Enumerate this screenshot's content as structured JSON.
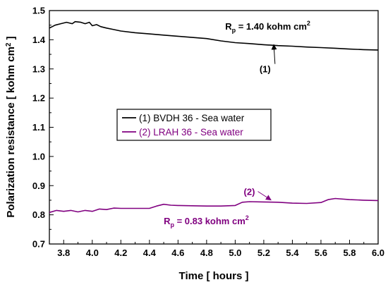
{
  "chart_data": {
    "type": "line",
    "xlabel": "Time [ hours ]",
    "ylabel": "Polarization resistance [ kohm cm",
    "ylabel_sup": "2",
    "ylabel_end": " ]",
    "xlim": [
      3.7,
      6.0
    ],
    "ylim": [
      0.7,
      1.5
    ],
    "xticks": [
      "3.8",
      "4.0",
      "4.2",
      "4.4",
      "4.6",
      "4.8",
      "5.0",
      "5.2",
      "5.4",
      "5.6",
      "5.8",
      "6.0"
    ],
    "yticks": [
      "0.7",
      "0.8",
      "0.9",
      "1.0",
      "1.1",
      "1.2",
      "1.3",
      "1.4",
      "1.5"
    ],
    "grid": false,
    "legend_position": "center-left",
    "series": [
      {
        "name": "(1) BVDH 36 - Sea water",
        "color": "#000000",
        "points": [
          [
            3.7,
            1.44
          ],
          [
            3.74,
            1.45
          ],
          [
            3.78,
            1.455
          ],
          [
            3.82,
            1.46
          ],
          [
            3.86,
            1.455
          ],
          [
            3.88,
            1.462
          ],
          [
            3.92,
            1.46
          ],
          [
            3.95,
            1.455
          ],
          [
            3.98,
            1.46
          ],
          [
            4.0,
            1.448
          ],
          [
            4.03,
            1.452
          ],
          [
            4.06,
            1.445
          ],
          [
            4.1,
            1.44
          ],
          [
            4.15,
            1.435
          ],
          [
            4.2,
            1.43
          ],
          [
            4.3,
            1.424
          ],
          [
            4.4,
            1.42
          ],
          [
            4.5,
            1.416
          ],
          [
            4.6,
            1.412
          ],
          [
            4.7,
            1.408
          ],
          [
            4.8,
            1.404
          ],
          [
            4.9,
            1.396
          ],
          [
            5.0,
            1.39
          ],
          [
            5.1,
            1.387
          ],
          [
            5.2,
            1.383
          ],
          [
            5.3,
            1.38
          ],
          [
            5.4,
            1.378
          ],
          [
            5.5,
            1.375
          ],
          [
            5.6,
            1.373
          ],
          [
            5.7,
            1.371
          ],
          [
            5.8,
            1.368
          ],
          [
            5.9,
            1.366
          ],
          [
            6.0,
            1.365
          ]
        ]
      },
      {
        "name": "(2) LRAH 36 - Sea water",
        "color": "#800080",
        "points": [
          [
            3.7,
            0.808
          ],
          [
            3.75,
            0.815
          ],
          [
            3.8,
            0.812
          ],
          [
            3.85,
            0.815
          ],
          [
            3.9,
            0.81
          ],
          [
            3.95,
            0.815
          ],
          [
            4.0,
            0.812
          ],
          [
            4.05,
            0.82
          ],
          [
            4.1,
            0.818
          ],
          [
            4.15,
            0.823
          ],
          [
            4.2,
            0.822
          ],
          [
            4.3,
            0.822
          ],
          [
            4.4,
            0.822
          ],
          [
            4.45,
            0.83
          ],
          [
            4.5,
            0.836
          ],
          [
            4.55,
            0.833
          ],
          [
            4.6,
            0.832
          ],
          [
            4.7,
            0.831
          ],
          [
            4.8,
            0.83
          ],
          [
            4.9,
            0.83
          ],
          [
            5.0,
            0.832
          ],
          [
            5.05,
            0.843
          ],
          [
            5.1,
            0.845
          ],
          [
            5.2,
            0.844
          ],
          [
            5.3,
            0.843
          ],
          [
            5.4,
            0.84
          ],
          [
            5.5,
            0.839
          ],
          [
            5.6,
            0.842
          ],
          [
            5.65,
            0.852
          ],
          [
            5.7,
            0.856
          ],
          [
            5.8,
            0.852
          ],
          [
            5.9,
            0.85
          ],
          [
            6.0,
            0.849
          ]
        ]
      }
    ],
    "annotations": [
      {
        "text": "R",
        "sub": "p",
        "rest": " = 1.40 kohm cm",
        "sup": "2",
        "x": 4.93,
        "y": 1.435,
        "color": "#000000"
      },
      {
        "text": "R",
        "sub": "p",
        "rest": " = 0.83 kohm cm",
        "sup": "2",
        "x": 4.5,
        "y": 0.768,
        "color": "#800080"
      },
      {
        "text": "(1)",
        "x": 5.17,
        "y": 1.288,
        "color": "#000000",
        "arrow_to": [
          5.27,
          1.383
        ]
      },
      {
        "text": "(2)",
        "x": 5.06,
        "y": 0.868,
        "color": "#800080",
        "arrow_to": [
          5.25,
          0.851
        ]
      }
    ]
  }
}
